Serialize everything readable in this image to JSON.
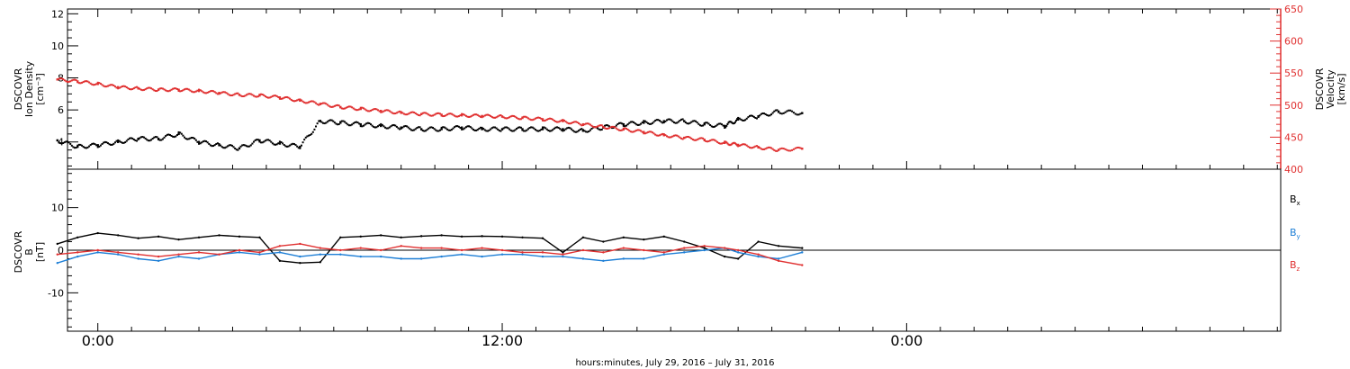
{
  "chart_data": [
    {
      "type": "scatter",
      "panel": "top",
      "ylabel_left": [
        "DSCOVR",
        "Ion Density",
        "[cm⁻³]"
      ],
      "ylabel_right": [
        "DSCOVR",
        "Velocity",
        "[km/s]"
      ],
      "yticks_left": [
        "4",
        "6",
        "8",
        "10",
        "12"
      ],
      "yticks_right": [
        "400",
        "450",
        "500",
        "550",
        "600",
        "650"
      ],
      "ylim_left": [
        2.3,
        12.3
      ],
      "ylim_right": [
        400,
        650
      ],
      "grid": false,
      "series": [
        {
          "name": "Ion Density",
          "axis": "left",
          "color": "#000000",
          "x_hours": [
            -1.2,
            -0.6,
            0,
            0.6,
            1.2,
            1.8,
            2.4,
            3.0,
            3.6,
            4.2,
            4.8,
            5.4,
            6.0,
            6.6,
            7.2,
            7.8,
            8.4,
            9.0,
            9.6,
            10.2,
            10.8,
            11.4,
            12.0,
            12.6,
            13.2,
            13.8,
            14.4,
            15.0,
            15.6,
            16.2,
            16.8,
            17.4,
            18.0,
            18.6,
            19.0,
            19.6,
            20.2,
            20.9
          ],
          "values": [
            4.1,
            3.7,
            3.8,
            4.0,
            4.2,
            4.2,
            4.5,
            4.0,
            3.8,
            3.6,
            4.1,
            3.9,
            3.7,
            5.3,
            5.2,
            5.1,
            5.0,
            4.9,
            4.8,
            4.8,
            4.9,
            4.8,
            4.8,
            4.8,
            4.8,
            4.8,
            4.7,
            4.9,
            5.1,
            5.2,
            5.3,
            5.3,
            5.1,
            5.0,
            5.4,
            5.6,
            5.9,
            5.8
          ]
        },
        {
          "name": "Velocity",
          "axis": "right",
          "color": "#e03030",
          "x_hours": [
            -1.2,
            -0.6,
            0,
            0.6,
            1.2,
            1.8,
            2.4,
            3.0,
            3.6,
            4.2,
            4.8,
            5.4,
            6.0,
            6.6,
            7.2,
            7.8,
            8.4,
            9.0,
            9.6,
            10.2,
            10.8,
            11.4,
            12.0,
            12.6,
            13.2,
            13.8,
            14.4,
            15.0,
            15.6,
            16.2,
            16.8,
            17.4,
            18.0,
            18.6,
            19.0,
            19.6,
            20.2,
            20.9
          ],
          "values": [
            540,
            537,
            533,
            528,
            526,
            524,
            524,
            522,
            519,
            516,
            515,
            512,
            507,
            502,
            497,
            494,
            491,
            488,
            486,
            485,
            484,
            483,
            482,
            480,
            478,
            475,
            470,
            466,
            462,
            458,
            453,
            449,
            446,
            441,
            438,
            434,
            430,
            432
          ]
        }
      ]
    },
    {
      "type": "line",
      "panel": "bottom",
      "ylabel_left": [
        "DSCOVR",
        "B",
        "[nT]"
      ],
      "yticks_left": [
        "-10",
        "0",
        "10"
      ],
      "ylim": [
        -19,
        19
      ],
      "zero_line": true,
      "legend_position": "right",
      "series": [
        {
          "name": "Bx",
          "label_main": "B",
          "label_sub": "x",
          "color": "#000000",
          "x_hours": [
            -1.2,
            -0.6,
            0,
            0.6,
            1.2,
            1.8,
            2.4,
            3.0,
            3.6,
            4.2,
            4.8,
            5.4,
            6.0,
            6.6,
            7.2,
            7.8,
            8.4,
            9.0,
            9.6,
            10.2,
            10.8,
            11.4,
            12.0,
            12.6,
            13.2,
            13.8,
            14.4,
            15.0,
            15.6,
            16.2,
            16.8,
            17.4,
            18.0,
            18.6,
            19.0,
            19.6,
            20.2,
            20.9
          ],
          "values": [
            1.5,
            3.0,
            4.0,
            3.5,
            2.8,
            3.2,
            2.5,
            3.0,
            3.5,
            3.2,
            3.0,
            -2.5,
            -3.0,
            -2.8,
            3.0,
            3.2,
            3.5,
            3.0,
            3.3,
            3.5,
            3.2,
            3.3,
            3.2,
            3.0,
            2.8,
            -0.5,
            3.0,
            2.0,
            3.0,
            2.5,
            3.2,
            2.0,
            0.5,
            -1.5,
            -2.0,
            2.0,
            1.0,
            0.5
          ]
        },
        {
          "name": "By",
          "label_main": "B",
          "label_sub": "y",
          "color": "#1e7fd6",
          "x_hours": [
            -1.2,
            -0.6,
            0,
            0.6,
            1.2,
            1.8,
            2.4,
            3.0,
            3.6,
            4.2,
            4.8,
            5.4,
            6.0,
            6.6,
            7.2,
            7.8,
            8.4,
            9.0,
            9.6,
            10.2,
            10.8,
            11.4,
            12.0,
            12.6,
            13.2,
            13.8,
            14.4,
            15.0,
            15.6,
            16.2,
            16.8,
            17.4,
            18.0,
            18.6,
            19.0,
            19.6,
            20.2,
            20.9
          ],
          "values": [
            -3.0,
            -1.5,
            -0.5,
            -1.0,
            -2.0,
            -2.5,
            -1.5,
            -2.0,
            -1.0,
            -0.5,
            -1.0,
            -0.5,
            -1.5,
            -1.0,
            -1.0,
            -1.5,
            -1.5,
            -2.0,
            -2.0,
            -1.5,
            -1.0,
            -1.5,
            -1.0,
            -1.0,
            -1.5,
            -1.5,
            -2.0,
            -2.5,
            -2.0,
            -2.0,
            -1.0,
            -0.5,
            0.0,
            0.5,
            -0.5,
            -1.5,
            -2.0,
            -0.5
          ]
        },
        {
          "name": "Bz",
          "label_main": "B",
          "label_sub": "z",
          "color": "#e03030",
          "x_hours": [
            -1.2,
            -0.6,
            0,
            0.6,
            1.2,
            1.8,
            2.4,
            3.0,
            3.6,
            4.2,
            4.8,
            5.4,
            6.0,
            6.6,
            7.2,
            7.8,
            8.4,
            9.0,
            9.6,
            10.2,
            10.8,
            11.4,
            12.0,
            12.6,
            13.2,
            13.8,
            14.4,
            15.0,
            15.6,
            16.2,
            16.8,
            17.4,
            18.0,
            18.6,
            19.0,
            19.6,
            20.2,
            20.9
          ],
          "values": [
            -1.0,
            -0.5,
            0.0,
            -0.5,
            -1.0,
            -1.5,
            -1.0,
            -0.5,
            -1.0,
            0.0,
            -0.5,
            1.0,
            1.5,
            0.5,
            0.0,
            0.5,
            0.0,
            1.0,
            0.5,
            0.5,
            0.0,
            0.5,
            0.0,
            -0.5,
            -0.5,
            -1.0,
            0.0,
            -0.5,
            0.5,
            0.0,
            -0.5,
            0.5,
            1.0,
            0.5,
            0.0,
            -1.0,
            -2.5,
            -3.5
          ]
        }
      ]
    }
  ],
  "x_axis": {
    "tick_labels": [
      "0:00",
      "12:00",
      "0:00"
    ],
    "tick_hours": [
      0,
      12,
      24
    ],
    "range_hours": [
      -0.9,
      35.1
    ],
    "title": "hours:minutes, July 29, 2016 – July 31, 2016"
  },
  "colors": {
    "black": "#000000",
    "red": "#e03030",
    "blue": "#1e7fd6"
  }
}
